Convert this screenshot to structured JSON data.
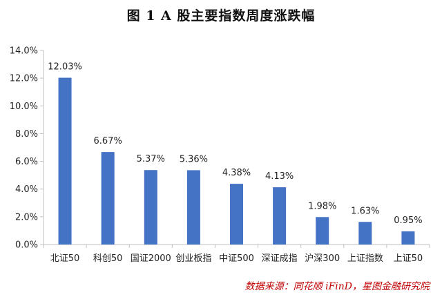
{
  "chart_data": {
    "type": "bar",
    "title": "图 1   A 股主要指数周度涨跌幅",
    "categories": [
      "北证50",
      "科创50",
      "国证2000",
      "创业板指",
      "中证500",
      "深证成指",
      "沪深300",
      "上证指数",
      "上证50"
    ],
    "values": [
      12.03,
      6.67,
      5.37,
      5.36,
      4.38,
      4.13,
      1.98,
      1.63,
      0.95
    ],
    "data_labels": [
      "12.03%",
      "6.67%",
      "5.37%",
      "5.36%",
      "4.38%",
      "4.13%",
      "1.98%",
      "1.63%",
      "0.95%"
    ],
    "y_ticks": [
      "0.0%",
      "2.0%",
      "4.0%",
      "6.0%",
      "8.0%",
      "10.0%",
      "12.0%",
      "14.0%"
    ],
    "ylim": [
      0,
      14
    ],
    "xlabel": "",
    "ylabel": "",
    "grid": false,
    "bar_color": "#4472C4",
    "source": "数据来源：同花顺 iFinD，星图金融研究院",
    "source_color": "#C00000"
  }
}
